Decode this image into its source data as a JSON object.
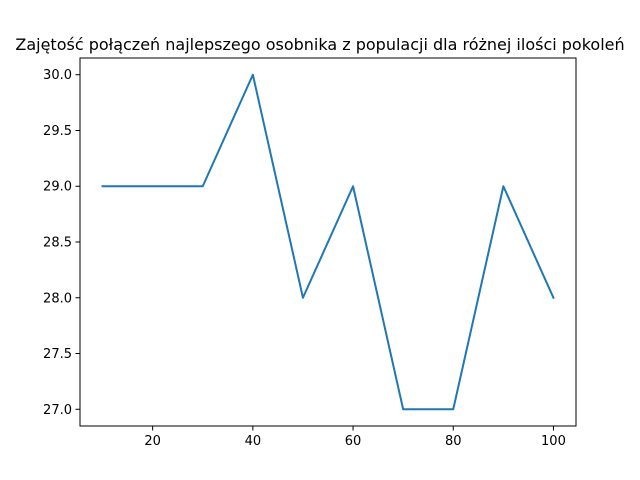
{
  "chart_data": {
    "type": "line",
    "title": "Zajętość połączeń najlepszego osobnika z populacji dla różnej ilości pokoleń",
    "xlabel": "",
    "ylabel": "",
    "x": [
      10,
      20,
      30,
      40,
      50,
      60,
      70,
      80,
      90,
      100
    ],
    "series": [
      {
        "values": [
          29,
          29,
          29,
          30,
          28,
          29,
          27,
          27,
          29,
          28
        ],
        "color": "#1f77b4"
      }
    ],
    "x_ticks": [
      20,
      40,
      60,
      80,
      100
    ],
    "x_tick_labels": [
      "20",
      "40",
      "60",
      "80",
      "100"
    ],
    "y_ticks": [
      27.0,
      27.5,
      28.0,
      28.5,
      29.0,
      29.5,
      30.0
    ],
    "y_tick_labels": [
      "27.0",
      "27.5",
      "28.0",
      "28.5",
      "29.0",
      "29.5",
      "30.0"
    ],
    "xlim": [
      5.5,
      104.5
    ],
    "ylim": [
      26.85,
      30.15
    ],
    "grid": false,
    "legend": "none"
  }
}
